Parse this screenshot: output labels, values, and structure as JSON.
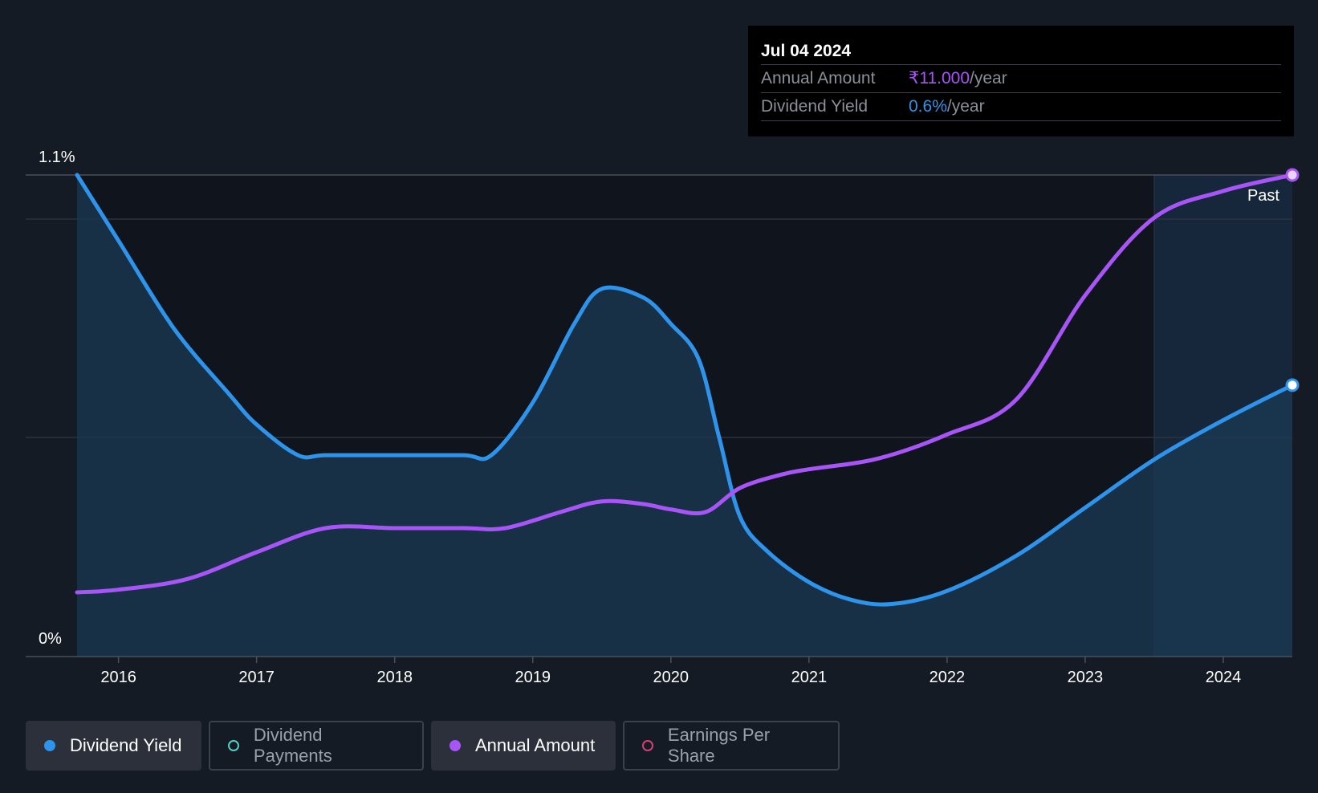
{
  "tooltip": {
    "date": "Jul 04 2024",
    "rows": [
      {
        "label": "Annual Amount",
        "value": "₹11.000",
        "unit": "/year"
      },
      {
        "label": "Dividend Yield",
        "value": "0.6%",
        "unit": "/year"
      }
    ]
  },
  "legend": [
    {
      "label": "Dividend Yield",
      "color": "#2e93ea",
      "active": true,
      "filled": true
    },
    {
      "label": "Dividend Payments",
      "color": "#4fd1c5",
      "active": false,
      "filled": false
    },
    {
      "label": "Annual Amount",
      "color": "#a855f7",
      "active": true,
      "filled": true
    },
    {
      "label": "Earnings Per Share",
      "color": "#d6407a",
      "active": false,
      "filled": false
    }
  ],
  "chart_data": {
    "type": "line",
    "y_tick_labels": [
      "1.1%",
      "0%"
    ],
    "ylim": [
      0,
      1.1
    ],
    "x_tick_labels": [
      "2016",
      "2017",
      "2018",
      "2019",
      "2020",
      "2021",
      "2022",
      "2023",
      "2024"
    ],
    "xlim": [
      2015.7,
      2024.5
    ],
    "past_label": "Past",
    "past_start": 2023.5,
    "series": [
      {
        "name": "Dividend Yield",
        "color": "#2e93ea",
        "unit": "%",
        "x": [
          2015.7,
          2016.0,
          2016.4,
          2016.8,
          2017.0,
          2017.3,
          2017.5,
          2018.0,
          2018.5,
          2018.7,
          2019.0,
          2019.3,
          2019.5,
          2019.8,
          2020.0,
          2020.2,
          2020.35,
          2020.5,
          2020.7,
          2021.0,
          2021.3,
          2021.6,
          2022.0,
          2022.5,
          2023.0,
          2023.5,
          2024.0,
          2024.5
        ],
        "y": [
          1.1,
          0.95,
          0.75,
          0.6,
          0.53,
          0.46,
          0.46,
          0.46,
          0.46,
          0.46,
          0.58,
          0.76,
          0.84,
          0.82,
          0.76,
          0.68,
          0.5,
          0.32,
          0.24,
          0.17,
          0.13,
          0.12,
          0.15,
          0.23,
          0.34,
          0.45,
          0.54,
          0.62
        ]
      },
      {
        "name": "Annual Amount",
        "color": "#a855f7",
        "unit": "₹",
        "x": [
          2015.7,
          2016.0,
          2016.5,
          2017.0,
          2017.5,
          2018.0,
          2018.5,
          2018.8,
          2019.2,
          2019.5,
          2019.8,
          2020.0,
          2020.25,
          2020.5,
          2020.8,
          2021.0,
          2021.5,
          2022.0,
          2022.5,
          2023.0,
          2023.5,
          2024.0,
          2024.5
        ],
        "y": [
          2.4,
          2.5,
          2.9,
          3.9,
          4.8,
          4.8,
          4.8,
          4.8,
          5.4,
          5.8,
          5.7,
          5.5,
          5.4,
          6.3,
          6.8,
          7.0,
          7.4,
          8.3,
          9.6,
          13.5,
          16.4,
          17.4,
          18.0
        ]
      }
    ]
  }
}
